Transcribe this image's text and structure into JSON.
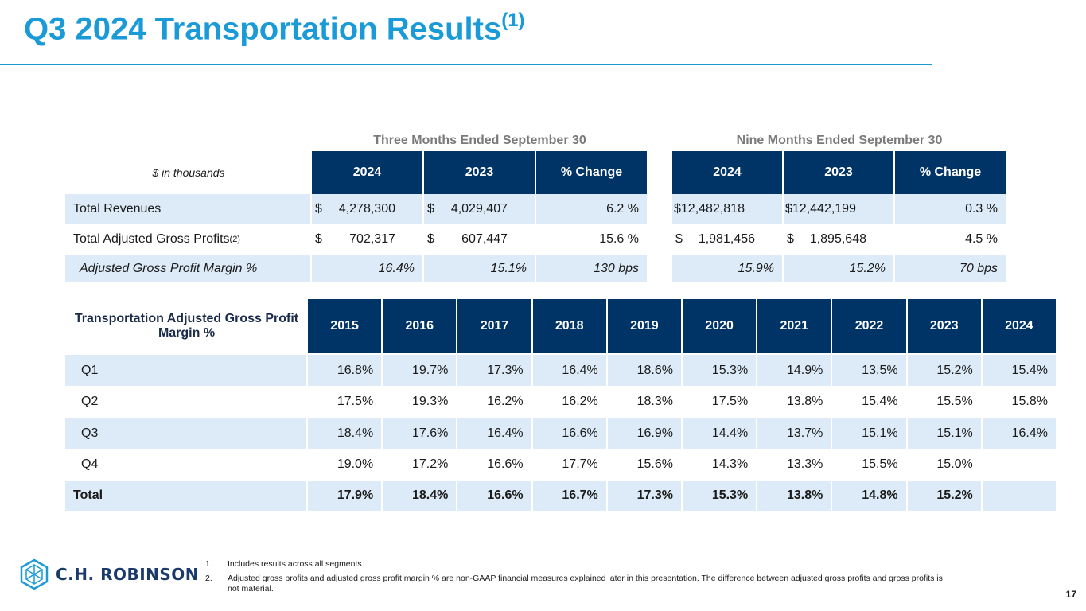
{
  "title": "Q3 2024 Transportation Results",
  "title_sup": "(1)",
  "summary": {
    "group_three": "Three Months Ended September 30",
    "group_nine": "Nine Months Ended September 30",
    "units": "$ in thousands",
    "headers": [
      "2024",
      "2023",
      "% Change",
      "2024",
      "2023",
      "% Change"
    ],
    "rows": [
      {
        "label": "Total Revenues",
        "label_sup": "",
        "c1_sign": "$",
        "c1": "4,278,300",
        "c2_sign": "$",
        "c2": "4,029,407",
        "c3": "6.2 %",
        "c4": "$12,482,818",
        "c5": "$12,442,199",
        "c6": "0.3 %"
      },
      {
        "label": "Total Adjusted Gross Profits",
        "label_sup": "(2)",
        "c1_sign": "$",
        "c1": "702,317",
        "c2_sign": "$",
        "c2": "607,447",
        "c3": "15.6 %",
        "c4_sign": "$",
        "c4": "1,981,456",
        "c5_sign": "$",
        "c5": "1,895,648",
        "c6": "4.5 %"
      },
      {
        "label": "Adjusted Gross Profit Margin %",
        "label_sup": "",
        "c1": "16.4%",
        "c2": "15.1%",
        "c3": "130 bps",
        "c4": "15.9%",
        "c5": "15.2%",
        "c6": "70 bps"
      }
    ]
  },
  "margins": {
    "corner": "Transportation Adjusted Gross Profit Margin %",
    "years": [
      "2015",
      "2016",
      "2017",
      "2018",
      "2019",
      "2020",
      "2021",
      "2022",
      "2023",
      "2024"
    ],
    "rows": [
      {
        "label": "Q1",
        "values": [
          "16.8%",
          "19.7%",
          "17.3%",
          "16.4%",
          "18.6%",
          "15.3%",
          "14.9%",
          "13.5%",
          "15.2%",
          "15.4%"
        ]
      },
      {
        "label": "Q2",
        "values": [
          "17.5%",
          "19.3%",
          "16.2%",
          "16.2%",
          "18.3%",
          "17.5%",
          "13.8%",
          "15.4%",
          "15.5%",
          "15.8%"
        ]
      },
      {
        "label": "Q3",
        "values": [
          "18.4%",
          "17.6%",
          "16.4%",
          "16.6%",
          "16.9%",
          "14.4%",
          "13.7%",
          "15.1%",
          "15.1%",
          "16.4%"
        ]
      },
      {
        "label": "Q4",
        "values": [
          "19.0%",
          "17.2%",
          "16.6%",
          "17.7%",
          "15.6%",
          "14.3%",
          "13.3%",
          "15.5%",
          "15.0%",
          ""
        ]
      },
      {
        "label": "Total",
        "values": [
          "17.9%",
          "18.4%",
          "16.6%",
          "16.7%",
          "17.3%",
          "15.3%",
          "13.8%",
          "14.8%",
          "15.2%",
          ""
        ]
      }
    ]
  },
  "footnotes": [
    {
      "num": "1.",
      "text": "Includes results across all segments."
    },
    {
      "num": "2.",
      "text": "Adjusted gross profits and adjusted gross profit margin % are non-GAAP financial measures explained later in this presentation. The difference between adjusted gross profits and gross profits is not material."
    }
  ],
  "logo_text": "C.H. ROBINSON",
  "page_number": "17",
  "colors": {
    "accent": "#1a9ad6",
    "header_bg": "#003366",
    "row_shade": "#dcebf7"
  }
}
